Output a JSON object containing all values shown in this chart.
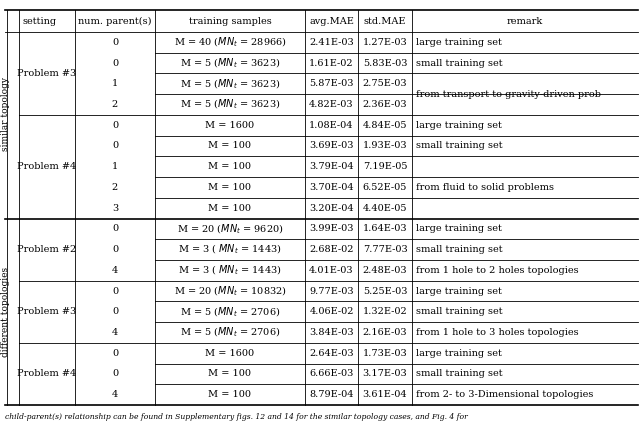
{
  "col_headers": [
    "setting",
    "num. parent(s)",
    "training samples",
    "avg.MAE",
    "std.MAE",
    "remark"
  ],
  "rows": [
    {
      "parent": "0",
      "samples": "M = 40 (MN_t = 28966)",
      "avg_mae": "2.41E-03",
      "std_mae": "1.27E-03"
    },
    {
      "parent": "0",
      "samples": "M = 5 (MN_t = 3623)",
      "avg_mae": "1.61E-02",
      "std_mae": "5.83E-03"
    },
    {
      "parent": "1",
      "samples": "M = 5 (MN_t = 3623)",
      "avg_mae": "5.87E-03",
      "std_mae": "2.75E-03"
    },
    {
      "parent": "2",
      "samples": "M = 5 (MN_t = 3623)",
      "avg_mae": "4.82E-03",
      "std_mae": "2.36E-03"
    },
    {
      "parent": "0",
      "samples": "M = 1600",
      "avg_mae": "1.08E-04",
      "std_mae": "4.84E-05"
    },
    {
      "parent": "0",
      "samples": "M = 100",
      "avg_mae": "3.69E-03",
      "std_mae": "1.93E-03"
    },
    {
      "parent": "1",
      "samples": "M = 100",
      "avg_mae": "3.79E-04",
      "std_mae": "7.19E-05"
    },
    {
      "parent": "2",
      "samples": "M = 100",
      "avg_mae": "3.70E-04",
      "std_mae": "6.52E-05"
    },
    {
      "parent": "3",
      "samples": "M = 100",
      "avg_mae": "3.20E-04",
      "std_mae": "4.40E-05"
    },
    {
      "parent": "0",
      "samples": "M = 20 (MN_t = 9620)",
      "avg_mae": "3.99E-03",
      "std_mae": "1.64E-03"
    },
    {
      "parent": "0",
      "samples": "M = 3 ( MN_t = 1443)",
      "avg_mae": "2.68E-02",
      "std_mae": "7.77E-03"
    },
    {
      "parent": "4",
      "samples": "M = 3 ( MN_t = 1443)",
      "avg_mae": "4.01E-03",
      "std_mae": "2.48E-03"
    },
    {
      "parent": "0",
      "samples": "M = 20 (MN_t = 10832)",
      "avg_mae": "9.77E-03",
      "std_mae": "5.25E-03"
    },
    {
      "parent": "0",
      "samples": "M = 5 (MN_t = 2706)",
      "avg_mae": "4.06E-02",
      "std_mae": "1.32E-02"
    },
    {
      "parent": "4",
      "samples": "M = 5 (MN_t = 2706)",
      "avg_mae": "3.84E-03",
      "std_mae": "2.16E-03"
    },
    {
      "parent": "0",
      "samples": "M = 1600",
      "avg_mae": "2.64E-03",
      "std_mae": "1.73E-03"
    },
    {
      "parent": "0",
      "samples": "M = 100",
      "avg_mae": "6.66E-03",
      "std_mae": "3.17E-03"
    },
    {
      "parent": "4",
      "samples": "M = 100",
      "avg_mae": "8.79E-04",
      "std_mae": "3.61E-04"
    }
  ],
  "remark_merges": [
    {
      "rows": [
        0
      ],
      "text": "large training set"
    },
    {
      "rows": [
        1
      ],
      "text": "small training set"
    },
    {
      "rows": [
        2,
        3
      ],
      "text": "from transport to gravity-driven prob"
    },
    {
      "rows": [
        4
      ],
      "text": "large training set"
    },
    {
      "rows": [
        5
      ],
      "text": "small training set"
    },
    {
      "rows": [
        6,
        7,
        8
      ],
      "text": "from fluid to solid problems"
    },
    {
      "rows": [
        9
      ],
      "text": "large training set"
    },
    {
      "rows": [
        10
      ],
      "text": "small training set"
    },
    {
      "rows": [
        11
      ],
      "text": "from 1 hole to 2 holes topologies"
    },
    {
      "rows": [
        12
      ],
      "text": "large training set"
    },
    {
      "rows": [
        13
      ],
      "text": "small training set"
    },
    {
      "rows": [
        14
      ],
      "text": "from 1 hole to 3 holes topologies"
    },
    {
      "rows": [
        15
      ],
      "text": "large training set"
    },
    {
      "rows": [
        16
      ],
      "text": "small training set"
    },
    {
      "rows": [
        17
      ],
      "text": "from 2- to 3-Dimensional topologies"
    }
  ],
  "problem_groups": [
    {
      "label": "Problem #3",
      "rows": [
        0,
        1,
        2,
        3
      ],
      "group": "similar"
    },
    {
      "label": "Problem #4",
      "rows": [
        4,
        5,
        6,
        7,
        8
      ],
      "group": "similar"
    },
    {
      "label": "Problem #2",
      "rows": [
        9,
        10,
        11
      ],
      "group": "different"
    },
    {
      "label": "Problem #3",
      "rows": [
        12,
        13,
        14
      ],
      "group": "different"
    },
    {
      "label": "Problem #4",
      "rows": [
        15,
        16,
        17
      ],
      "group": "different"
    }
  ],
  "setting_groups": [
    {
      "label": "similar topology",
      "rows": [
        0,
        1,
        2,
        3,
        4,
        5,
        6,
        7,
        8
      ]
    },
    {
      "label": "different topologies",
      "rows": [
        9,
        10,
        11,
        12,
        13,
        14,
        15,
        16,
        17
      ]
    }
  ],
  "footer": "child-parent(s) relationship can be found in Supplementary figs. 12 and 14 for the similar topology cases, and Fig. 4 for",
  "lw_thin": 0.6,
  "lw_thick": 1.2,
  "fontsize_data": 7.0,
  "fontsize_label": 7.0,
  "fontsize_vert": 6.5,
  "fontsize_footer": 5.5
}
